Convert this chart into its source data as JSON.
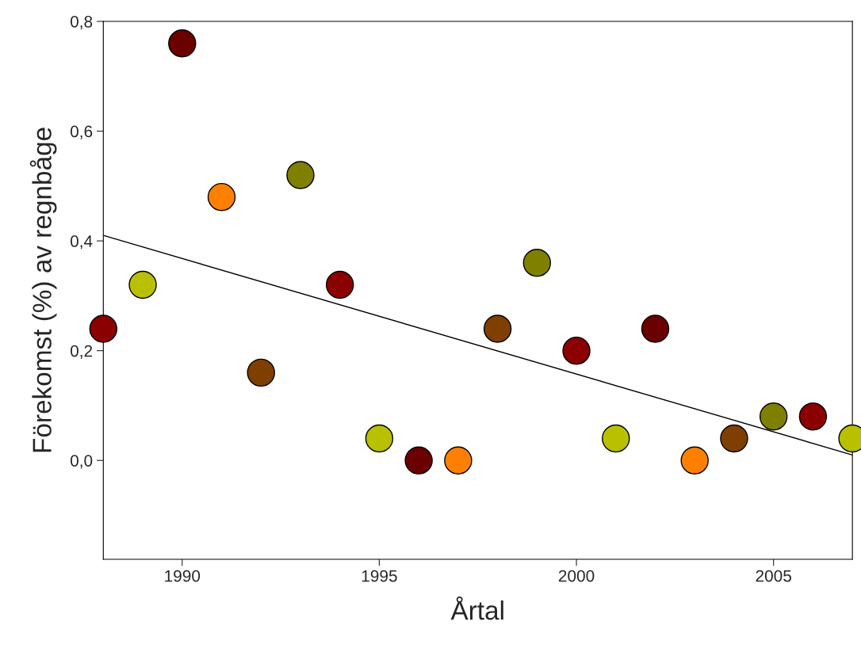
{
  "chart_data": {
    "type": "scatter",
    "xlabel": "Årtal",
    "ylabel": "Förekomst (%) av regnbåge",
    "xlim": [
      1988,
      2007
    ],
    "ylim": [
      -0.18,
      0.8
    ],
    "xticks": [
      1990,
      1995,
      2000,
      2005
    ],
    "yticks": [
      {
        "value": 0,
        "label": "0,0"
      },
      {
        "value": 0.2,
        "label": "0,2"
      },
      {
        "value": 0.4,
        "label": "0,4"
      },
      {
        "value": 0.6,
        "label": "0,6"
      },
      {
        "value": 0.8,
        "label": "0,8"
      }
    ],
    "grid": false,
    "legend": false,
    "series": [
      {
        "marker": "circle",
        "x": [
          1988,
          1989,
          1990,
          1991,
          1992,
          1993,
          1994,
          1995,
          1996,
          1997,
          1998,
          1999,
          2000,
          2001,
          2002,
          2003,
          2004,
          2005,
          2006,
          2007
        ],
        "values": [
          0.24,
          0.32,
          0.76,
          0.48,
          0.16,
          0.52,
          0.32,
          0.04,
          0.0,
          0.0,
          0.24,
          0.36,
          0.2,
          0.04,
          0.24,
          0.0,
          0.04,
          0.08,
          0.08,
          0.04
        ],
        "colors": [
          "#8b0000",
          "#b8c000",
          "#6b0000",
          "#ff8000",
          "#7f3f00",
          "#808000",
          "#8b0000",
          "#b8c000",
          "#6b0000",
          "#ff8000",
          "#7f3f00",
          "#808000",
          "#8b0000",
          "#b8c000",
          "#6b0000",
          "#ff8000",
          "#7f3f00",
          "#808000",
          "#8b0000",
          "#b8c000"
        ]
      },
      {
        "type": "line",
        "x": [
          1988,
          2007
        ],
        "values": [
          0.41,
          0.01
        ],
        "color": "#000000"
      }
    ]
  }
}
